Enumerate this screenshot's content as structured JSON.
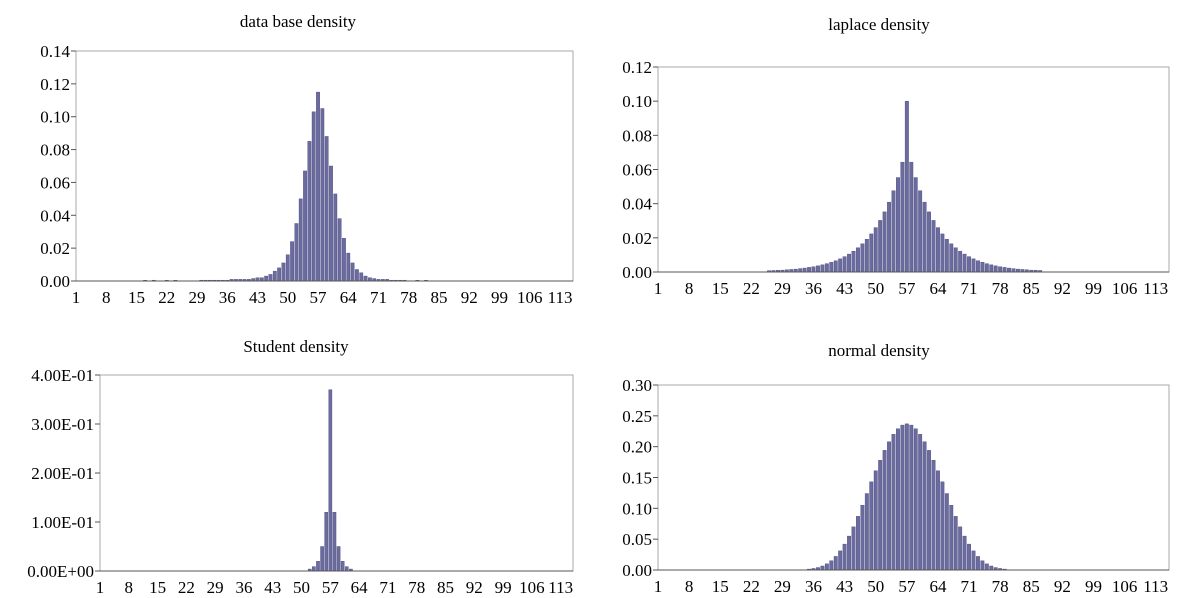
{
  "chart_data": [
    {
      "type": "bar",
      "title": "data base density",
      "xlabel": "",
      "ylabel": "",
      "x_tick_labels": [
        "1",
        "8",
        "15",
        "22",
        "29",
        "36",
        "43",
        "50",
        "57",
        "64",
        "71",
        "78",
        "85",
        "92",
        "99",
        "106",
        "113"
      ],
      "y_tick_labels": [
        "0.00",
        "0.02",
        "0.04",
        "0.06",
        "0.08",
        "0.10",
        "0.12",
        "0.14"
      ],
      "ylim": [
        0,
        0.14
      ],
      "x": [
        17,
        19,
        22,
        24,
        30,
        31,
        32,
        33,
        34,
        35,
        36,
        37,
        38,
        39,
        40,
        41,
        42,
        43,
        44,
        45,
        46,
        47,
        48,
        49,
        50,
        51,
        52,
        53,
        54,
        55,
        56,
        57,
        58,
        59,
        60,
        61,
        62,
        63,
        64,
        65,
        66,
        67,
        68,
        69,
        70,
        71,
        72,
        73,
        74,
        75,
        76,
        77,
        80,
        82
      ],
      "values": [
        0.0005,
        0.0005,
        0.0005,
        0.0005,
        0.0005,
        0.0005,
        0.0005,
        0.0005,
        0.0005,
        0.0005,
        0.0005,
        0.001,
        0.001,
        0.001,
        0.001,
        0.001,
        0.0015,
        0.002,
        0.002,
        0.003,
        0.004,
        0.006,
        0.008,
        0.011,
        0.016,
        0.024,
        0.035,
        0.05,
        0.067,
        0.085,
        0.103,
        0.115,
        0.105,
        0.088,
        0.07,
        0.053,
        0.038,
        0.026,
        0.017,
        0.011,
        0.007,
        0.005,
        0.003,
        0.002,
        0.0015,
        0.001,
        0.001,
        0.001,
        0.0005,
        0.0005,
        0.0005,
        0.0005,
        0.0005,
        0.0005
      ],
      "grid": false,
      "bar_color": "#6b6b9e"
    },
    {
      "type": "bar",
      "title": "laplace density",
      "xlabel": "",
      "ylabel": "",
      "x_tick_labels": [
        "1",
        "8",
        "15",
        "22",
        "29",
        "36",
        "43",
        "50",
        "57",
        "64",
        "71",
        "78",
        "85",
        "92",
        "99",
        "106",
        "113"
      ],
      "y_tick_labels": [
        "0.00",
        "0.02",
        "0.04",
        "0.06",
        "0.08",
        "0.10",
        "0.12"
      ],
      "ylim": [
        0,
        0.12
      ],
      "x": [
        26,
        27,
        28,
        29,
        30,
        31,
        32,
        33,
        34,
        35,
        36,
        37,
        38,
        39,
        40,
        41,
        42,
        43,
        44,
        45,
        46,
        47,
        48,
        49,
        50,
        51,
        52,
        53,
        54,
        55,
        56,
        57,
        58,
        59,
        60,
        61,
        62,
        63,
        64,
        65,
        66,
        67,
        68,
        69,
        70,
        71,
        72,
        73,
        74,
        75,
        76,
        77,
        78,
        79,
        80,
        81,
        82,
        83,
        84,
        85,
        86,
        87
      ],
      "values": [
        0.0008,
        0.0009,
        0.001,
        0.0011,
        0.0013,
        0.0015,
        0.0017,
        0.002,
        0.0023,
        0.0027,
        0.0031,
        0.0036,
        0.0042,
        0.0049,
        0.0057,
        0.0066,
        0.0077,
        0.009,
        0.0105,
        0.0122,
        0.0142,
        0.0165,
        0.0192,
        0.0223,
        0.026,
        0.0302,
        0.0352,
        0.0409,
        0.0476,
        0.0553,
        0.0643,
        0.1,
        0.0643,
        0.0553,
        0.0476,
        0.0409,
        0.0352,
        0.0302,
        0.026,
        0.0223,
        0.0192,
        0.0165,
        0.0142,
        0.0122,
        0.0105,
        0.009,
        0.0077,
        0.0066,
        0.0057,
        0.0049,
        0.0042,
        0.0036,
        0.0031,
        0.0027,
        0.0023,
        0.002,
        0.0017,
        0.0015,
        0.0013,
        0.0011,
        0.001,
        0.0009
      ],
      "grid": false,
      "bar_color": "#6b6b9e"
    },
    {
      "type": "bar",
      "title": "Student density",
      "xlabel": "",
      "ylabel": "",
      "x_tick_labels": [
        "1",
        "8",
        "15",
        "22",
        "29",
        "36",
        "43",
        "50",
        "57",
        "64",
        "71",
        "78",
        "85",
        "92",
        "99",
        "106",
        "113"
      ],
      "y_tick_labels": [
        "0.00E+00",
        "1.00E-01",
        "2.00E-01",
        "3.00E-01",
        "4.00E-01"
      ],
      "ylim": [
        0,
        0.4
      ],
      "x": [
        52,
        53,
        54,
        55,
        56,
        57,
        58,
        59,
        60,
        61,
        62
      ],
      "values": [
        0.004,
        0.009,
        0.02,
        0.05,
        0.12,
        0.37,
        0.12,
        0.05,
        0.02,
        0.009,
        0.004
      ],
      "grid": false,
      "bar_color": "#6b6b9e"
    },
    {
      "type": "bar",
      "title": "normal density",
      "xlabel": "",
      "ylabel": "",
      "x_tick_labels": [
        "1",
        "8",
        "15",
        "22",
        "29",
        "36",
        "43",
        "50",
        "57",
        "64",
        "71",
        "78",
        "85",
        "92",
        "99",
        "106",
        "113"
      ],
      "y_tick_labels": [
        "0.00",
        "0.05",
        "0.10",
        "0.15",
        "0.20",
        "0.25",
        "0.30"
      ],
      "ylim": [
        0,
        0.3
      ],
      "x": [
        35,
        36,
        37,
        38,
        39,
        40,
        41,
        42,
        43,
        44,
        45,
        46,
        47,
        48,
        49,
        50,
        51,
        52,
        53,
        54,
        55,
        56,
        57,
        58,
        59,
        60,
        61,
        62,
        63,
        64,
        65,
        66,
        67,
        68,
        69,
        70,
        71,
        72,
        73,
        74,
        75,
        76,
        77,
        78,
        79
      ],
      "values": [
        0.0015,
        0.0025,
        0.004,
        0.0065,
        0.01,
        0.015,
        0.022,
        0.031,
        0.042,
        0.055,
        0.07,
        0.087,
        0.105,
        0.124,
        0.143,
        0.161,
        0.178,
        0.194,
        0.208,
        0.22,
        0.229,
        0.235,
        0.237,
        0.235,
        0.229,
        0.22,
        0.208,
        0.194,
        0.178,
        0.161,
        0.143,
        0.124,
        0.105,
        0.087,
        0.07,
        0.055,
        0.042,
        0.031,
        0.022,
        0.015,
        0.01,
        0.0065,
        0.004,
        0.0025,
        0.0015
      ],
      "grid": false,
      "bar_color": "#6b6b9e"
    }
  ]
}
